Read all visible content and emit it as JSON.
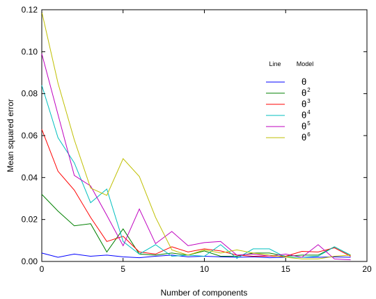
{
  "chart_data": {
    "type": "line",
    "xlabel": "Number of components",
    "ylabel": "Mean squared error",
    "xlim": [
      0,
      20
    ],
    "ylim": [
      0,
      0.12
    ],
    "xticks": [
      0,
      5,
      10,
      15,
      20
    ],
    "yticks": [
      0.0,
      0.02,
      0.04,
      0.06,
      0.08,
      0.1,
      0.12
    ],
    "xtick_labels": [
      "0",
      "5",
      "10",
      "15",
      "20"
    ],
    "ytick_labels": [
      "0.00",
      "0.02",
      "0.04",
      "0.06",
      "0.08",
      "0.10",
      "0.12"
    ],
    "grid": false,
    "legend": {
      "placement": "center-right",
      "line_header": "Line",
      "model_header": "Model"
    },
    "x": [
      0,
      1,
      2,
      3,
      4,
      5,
      6,
      7,
      8,
      9,
      10,
      11,
      12,
      13,
      14,
      15,
      16,
      17,
      18,
      19
    ],
    "series": [
      {
        "name": "θ",
        "base": "θ",
        "sup": "",
        "color": "#0000ff",
        "values": [
          0.004,
          0.002,
          0.0035,
          0.0025,
          0.003,
          0.0022,
          0.0018,
          0.0025,
          0.003,
          0.0022,
          0.0025,
          0.0022,
          0.002,
          0.0022,
          0.0018,
          0.002,
          0.002,
          0.002,
          0.0022,
          0.002
        ]
      },
      {
        "name": "θ2",
        "base": "θ",
        "sup": "2",
        "color": "#008000",
        "values": [
          0.032,
          0.024,
          0.017,
          0.018,
          0.0045,
          0.0155,
          0.0035,
          0.003,
          0.004,
          0.003,
          0.005,
          0.0025,
          0.0025,
          0.004,
          0.004,
          0.0025,
          0.003,
          0.003,
          0.007,
          0.003
        ]
      },
      {
        "name": "θ3",
        "base": "θ",
        "sup": "3",
        "color": "#ff0000",
        "values": [
          0.063,
          0.043,
          0.034,
          0.021,
          0.0095,
          0.012,
          0.0045,
          0.0035,
          0.007,
          0.0045,
          0.006,
          0.005,
          0.003,
          0.0025,
          0.0025,
          0.0025,
          0.0048,
          0.0045,
          0.0065,
          0.0025
        ]
      },
      {
        "name": "θ4",
        "base": "θ",
        "sup": "4",
        "color": "#00bfbf",
        "values": [
          0.084,
          0.059,
          0.047,
          0.028,
          0.0345,
          0.0095,
          0.0035,
          0.008,
          0.0025,
          0.003,
          0.0025,
          0.008,
          0.0015,
          0.006,
          0.006,
          0.002,
          0.002,
          0.0025,
          0.007,
          0.003
        ]
      },
      {
        "name": "θ5",
        "base": "θ",
        "sup": "5",
        "color": "#bf00bf",
        "values": [
          0.099,
          0.07,
          0.041,
          0.036,
          0.022,
          0.0075,
          0.025,
          0.0085,
          0.0143,
          0.0075,
          0.009,
          0.0095,
          0.003,
          0.0035,
          0.0025,
          0.0035,
          0.002,
          0.008,
          0.0012,
          0.0008
        ]
      },
      {
        "name": "θ6",
        "base": "θ",
        "sup": "6",
        "color": "#bfbf00",
        "values": [
          0.119,
          0.085,
          0.058,
          0.035,
          0.0315,
          0.049,
          0.0405,
          0.021,
          0.0055,
          0.003,
          0.0055,
          0.004,
          0.0055,
          0.004,
          0.003,
          0.002,
          0.0012,
          0.0012,
          0.0025,
          0.003
        ]
      }
    ]
  }
}
